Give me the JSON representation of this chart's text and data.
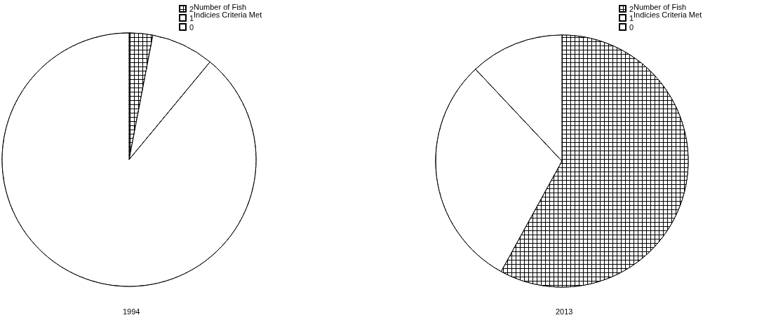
{
  "chart_data": [
    {
      "type": "pie",
      "title": "1994",
      "legend_title": "Number of Fish Indicies Criteria Met",
      "categories": [
        "2",
        "1",
        "0"
      ],
      "values": [
        3,
        8,
        89
      ],
      "colors": [
        "#000000",
        "#ffffff",
        "#ffffff"
      ],
      "legend": "top right"
    },
    {
      "type": "pie",
      "title": "2013",
      "legend_title": "Number of Fish Indicies Criteria Met",
      "categories": [
        "2",
        "1",
        "0"
      ],
      "values": [
        58,
        30,
        12
      ],
      "colors": [
        "#000000",
        "#ffffff",
        "#ffffff"
      ],
      "legend": "top right"
    }
  ]
}
